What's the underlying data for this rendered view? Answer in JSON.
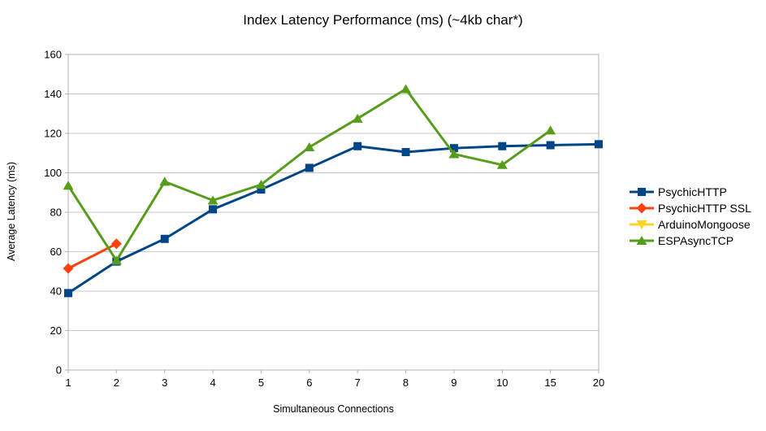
{
  "chart_data": {
    "type": "line",
    "title": "Index Latency Performance (ms) (~4kb char*)",
    "xlabel": "Simultaneous Connections",
    "ylabel": "Average Latency (ms)",
    "categories": [
      "1",
      "2",
      "3",
      "4",
      "5",
      "6",
      "7",
      "8",
      "9",
      "10",
      "15",
      "20"
    ],
    "ylim": [
      0,
      160
    ],
    "ytick_step": 20,
    "grid": "horizontal",
    "legend_position": "right",
    "series": [
      {
        "name": "PsychicHTTP",
        "color": "#004586",
        "marker": "square",
        "values": [
          39,
          55,
          66.5,
          81.5,
          91.5,
          102.5,
          113.5,
          110.5,
          112.5,
          113.5,
          114,
          114.5
        ]
      },
      {
        "name": "PsychicHTTP SSL",
        "color": "#FF420E",
        "marker": "diamond",
        "values": [
          51.5,
          64,
          null,
          null,
          null,
          null,
          null,
          null,
          null,
          null,
          null,
          null
        ]
      },
      {
        "name": "ArduinoMongoose",
        "color": "#FFD320",
        "marker": "triangle-down",
        "values": [
          null,
          null,
          null,
          null,
          null,
          null,
          null,
          null,
          null,
          null,
          null,
          null
        ]
      },
      {
        "name": "ESPAsyncTCP",
        "color": "#579D1C",
        "marker": "triangle-up",
        "values": [
          93.5,
          55.5,
          95.5,
          86,
          94,
          113,
          127.5,
          142.5,
          109.5,
          104,
          121.5,
          null
        ]
      }
    ],
    "colors": {
      "grid": "#C9C9C9",
      "axis": "#B3B3B3",
      "text": "#000000",
      "background": "#FFFFFF"
    }
  }
}
